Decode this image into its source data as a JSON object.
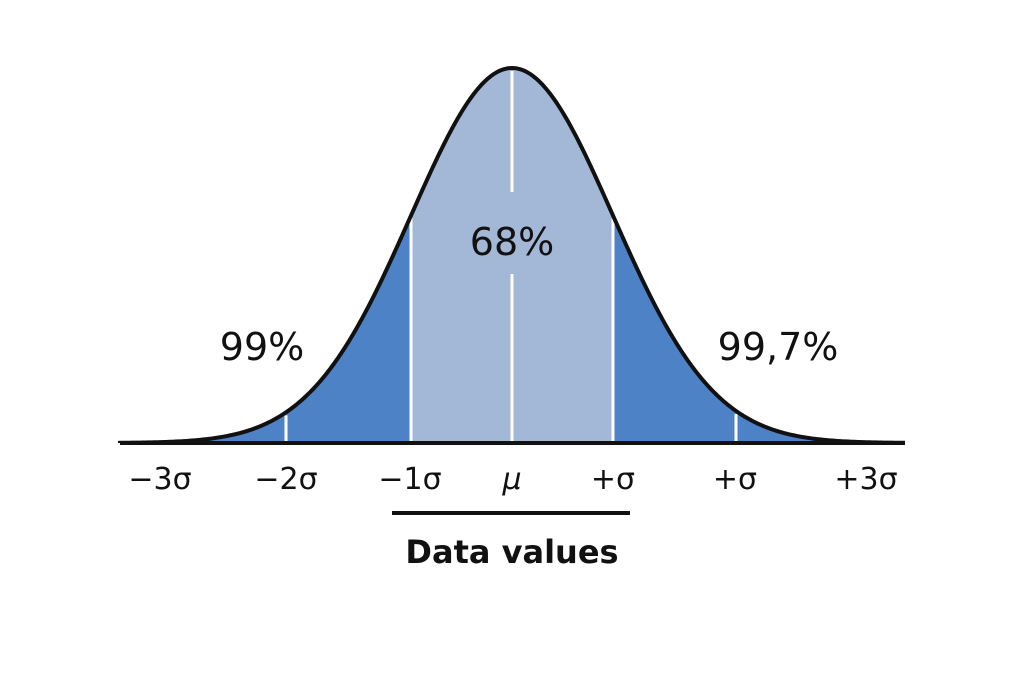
{
  "diagram": {
    "labels": {
      "center_pct": "68%",
      "left_pct": "99%",
      "right_pct": "99,7%",
      "x_axis_title": "Data values"
    },
    "ticks": [
      "−3σ",
      "−2σ",
      "−1σ",
      "μ",
      "+σ",
      "+σ",
      "+3σ"
    ],
    "colors": {
      "inner_band": "#a3b8d6",
      "outer_band": "#4e82c7",
      "curve": "#111111",
      "divider": "#ffffff"
    }
  }
}
